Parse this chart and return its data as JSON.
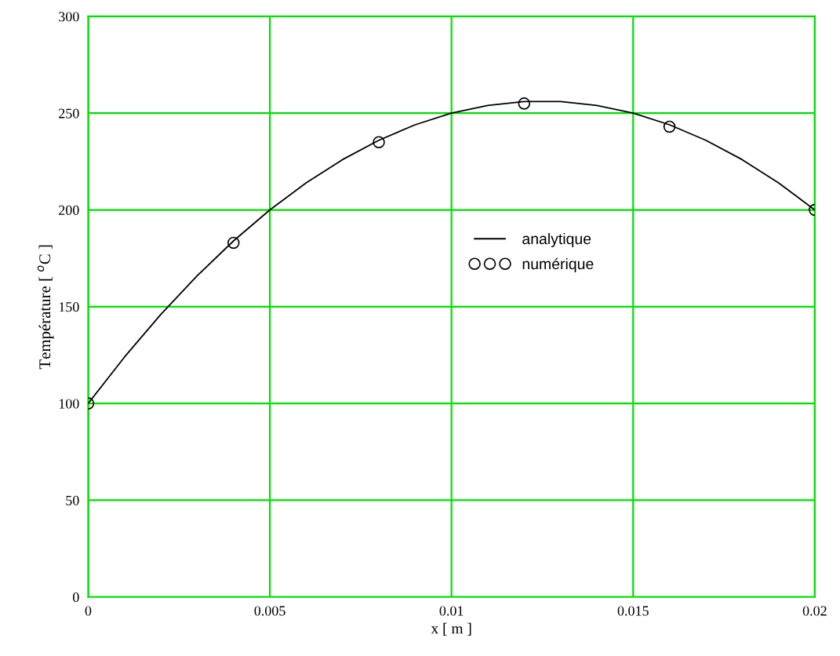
{
  "chart_data": {
    "type": "line",
    "xlabel": "x [ m ]",
    "ylabel": "Température [ $^{o}$C ]",
    "xlim": [
      0,
      0.02
    ],
    "ylim": [
      0,
      300
    ],
    "xticks": [
      0,
      0.005,
      0.01,
      0.015,
      0.02
    ],
    "yticks": [
      0,
      50,
      100,
      150,
      200,
      250,
      300
    ],
    "grid": true,
    "legend": "right",
    "series": [
      {
        "name": "analytique",
        "marker": "none",
        "line_style": "solid",
        "color": "#000000",
        "x": [
          0,
          0.001,
          0.002,
          0.003,
          0.004,
          0.005,
          0.006,
          0.007,
          0.008,
          0.009,
          0.01,
          0.011,
          0.012,
          0.013,
          0.014,
          0.015,
          0.016,
          0.017,
          0.018,
          0.019,
          0.02
        ],
        "values": [
          100,
          124,
          146,
          166,
          184,
          200,
          214,
          226,
          236,
          244,
          250,
          254,
          256,
          256,
          254,
          250,
          244,
          236,
          226,
          214,
          200
        ]
      },
      {
        "name": "numérique",
        "type": "scatter",
        "marker": "circle",
        "color": "#000000",
        "x": [
          0,
          0.004,
          0.008,
          0.012,
          0.016,
          0.02
        ],
        "values": [
          100,
          183,
          235,
          255,
          243,
          200
        ]
      }
    ]
  }
}
